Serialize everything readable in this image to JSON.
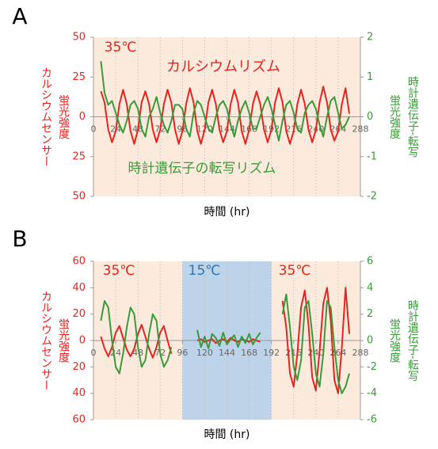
{
  "chart_data": [
    {
      "type": "line",
      "panel_label": "A",
      "xlabel": "時間 (hr)",
      "ylabel": [
        "カルシウムセンサー",
        "蛍光強度"
      ],
      "y2label": [
        "時計遺伝子-転写",
        "蛍光強度"
      ],
      "annotations": [
        {
          "text": "35℃",
          "color": "#e8231f"
        },
        {
          "text": "カルシウムリズム",
          "color": "#e8231f"
        },
        {
          "text": "時計遺伝子の転写リズム",
          "color": "#3a9a3a"
        }
      ],
      "regions": [
        {
          "from": 0,
          "to": 288,
          "color": "#fcebdd"
        }
      ],
      "xlim": [
        0,
        288
      ],
      "xticks": [
        0,
        24,
        48,
        72,
        96,
        120,
        144,
        168,
        192,
        216,
        240,
        264,
        288
      ],
      "ylim": [
        -50,
        50
      ],
      "yticks": [
        {
          "value": -50,
          "label": "50"
        },
        {
          "value": -25,
          "label": "25"
        },
        0,
        25,
        50
      ],
      "y2lim": [
        -2,
        2
      ],
      "y2ticks": [
        -2,
        -1,
        0,
        1,
        2
      ],
      "grid": true,
      "x": [
        8,
        12,
        16,
        20,
        24,
        28,
        32,
        36,
        40,
        44,
        48,
        52,
        56,
        60,
        64,
        68,
        72,
        76,
        80,
        84,
        88,
        92,
        96,
        100,
        104,
        108,
        112,
        116,
        120,
        124,
        128,
        132,
        136,
        140,
        144,
        148,
        152,
        156,
        160,
        164,
        168,
        172,
        176,
        180,
        184,
        188,
        192,
        196,
        200,
        204,
        208,
        212,
        216,
        220,
        224,
        228,
        232,
        236,
        240,
        244,
        248,
        252,
        256,
        260,
        264,
        268,
        272,
        276
      ],
      "series": [
        {
          "name": "カルシウムセンサー",
          "color": "#e8231f",
          "values": [
            16,
            9,
            -8,
            -16,
            -9,
            8,
            17,
            8,
            -9,
            -17,
            -8,
            9,
            16,
            8,
            -8,
            -16,
            -8,
            8,
            17,
            9,
            -8,
            -17,
            -9,
            8,
            18,
            9,
            -9,
            -17,
            -8,
            9,
            17,
            8,
            -8,
            -16,
            -9,
            8,
            17,
            9,
            -9,
            -17,
            -8,
            8,
            16,
            8,
            -8,
            -16,
            -8,
            9,
            18,
            9,
            -9,
            -17,
            -9,
            8,
            17,
            8,
            -8,
            -16,
            -8,
            9,
            19,
            9,
            -8,
            -15,
            -9,
            8,
            18,
            2
          ]
        },
        {
          "name": "時計遺伝子-転写",
          "color": "#3a9a3a",
          "axis": "y2",
          "values": [
            1.4,
            0.6,
            0.3,
            0.4,
            0.1,
            -0.2,
            -0.4,
            -0.1,
            0.3,
            0.4,
            0.2,
            -0.3,
            -0.5,
            0.0,
            0.2,
            0.5,
            0.1,
            -0.2,
            -0.4,
            -0.1,
            0.3,
            0.3,
            0.2,
            -0.3,
            -0.5,
            0.1,
            0.4,
            0.3,
            0.0,
            -0.3,
            -0.4,
            0.0,
            0.3,
            0.4,
            0.2,
            -0.2,
            -0.5,
            -0.1,
            0.2,
            0.4,
            0.1,
            -0.3,
            -0.3,
            0.0,
            0.3,
            0.5,
            0.2,
            -0.2,
            -0.6,
            -0.1,
            0.3,
            0.4,
            0.1,
            -0.3,
            -0.4,
            0.1,
            0.3,
            0.4,
            0.2,
            -0.2,
            -0.5,
            0.0,
            0.4,
            0.5,
            0.1,
            -0.3,
            -0.2,
            0.0
          ]
        }
      ]
    },
    {
      "type": "line",
      "panel_label": "B",
      "xlabel": "時間 (hr)",
      "ylabel": [
        "カルシウムセンサー",
        "蛍光強度"
      ],
      "y2label": [
        "時計遺伝子-転写",
        "蛍光強度"
      ],
      "annotations": [
        {
          "text": "35℃",
          "color": "#e8231f"
        },
        {
          "text": "15℃",
          "color": "#2e75b6"
        },
        {
          "text": "35℃",
          "color": "#e8231f"
        }
      ],
      "regions": [
        {
          "from": 0,
          "to": 96,
          "color": "#fcebdd"
        },
        {
          "from": 96,
          "to": 192,
          "color": "#bdd3ea"
        },
        {
          "from": 192,
          "to": 288,
          "color": "#fcebdd"
        }
      ],
      "xlim": [
        0,
        288
      ],
      "xticks": [
        0,
        24,
        48,
        72,
        96,
        120,
        144,
        168,
        192,
        216,
        240,
        264,
        288
      ],
      "ylim": [
        -60,
        60
      ],
      "yticks": [
        {
          "value": -60,
          "label": "60"
        },
        {
          "value": -40,
          "label": "40"
        },
        {
          "value": -20,
          "label": "20"
        },
        0,
        20,
        40,
        60
      ],
      "y2lim": [
        -6,
        6
      ],
      "y2ticks": [
        -6,
        -4,
        -2,
        0,
        2,
        4,
        6
      ],
      "grid": true,
      "x": [
        8,
        12,
        16,
        20,
        24,
        28,
        32,
        36,
        40,
        44,
        48,
        52,
        56,
        60,
        64,
        68,
        72,
        76,
        80,
        84,
        88,
        92,
        96,
        100,
        104,
        108,
        112,
        116,
        120,
        124,
        128,
        132,
        136,
        140,
        144,
        148,
        152,
        156,
        160,
        164,
        168,
        172,
        176,
        180,
        184,
        188,
        192,
        196,
        200,
        204,
        208,
        212,
        216,
        220,
        224,
        228,
        232,
        236,
        240,
        244,
        248,
        252,
        256,
        260,
        264,
        268,
        272,
        276
      ],
      "series": [
        {
          "name": "カルシウムセンサー",
          "color": "#e8231f",
          "values": [
            3,
            -6,
            -12,
            -5,
            6,
            11,
            2,
            -7,
            -12,
            -6,
            5,
            12,
            3,
            -6,
            -13,
            -5,
            6,
            11,
            0,
            -10,
            null,
            null,
            null,
            null,
            null,
            null,
            0,
            1,
            -1,
            0,
            1,
            -2,
            0,
            1,
            -1,
            2,
            0,
            -1,
            1,
            0,
            -1,
            1,
            0,
            -1,
            null,
            null,
            null,
            null,
            null,
            30,
            10,
            -25,
            -35,
            -10,
            25,
            38,
            12,
            -28,
            -38,
            -8,
            28,
            40,
            15,
            -30,
            -40,
            -5,
            40,
            5
          ]
        },
        {
          "name": "時計遺伝子-転写",
          "color": "#3a9a3a",
          "axis": "y2",
          "values": [
            1.5,
            3,
            2.5,
            0,
            -2,
            -2.5,
            -1,
            1,
            2.5,
            2,
            -0.5,
            -2,
            -1.5,
            0.5,
            2,
            1.5,
            -1,
            -2,
            -1.5,
            -0.5,
            null,
            null,
            null,
            null,
            null,
            null,
            0.8,
            -0.5,
            0.3,
            -0.6,
            0.5,
            0.2,
            -0.4,
            0.6,
            -0.3,
            0.1,
            0.4,
            -0.5,
            0.3,
            -0.2,
            0.5,
            -0.3,
            0.2,
            0.6,
            null,
            null,
            null,
            null,
            null,
            2,
            3.5,
            1,
            -2,
            -3,
            -1.5,
            2.5,
            3,
            0.5,
            -2.5,
            -3.5,
            -1,
            3,
            2.5,
            -0.5,
            -3,
            -4,
            -3.5,
            -2.5
          ]
        }
      ]
    }
  ]
}
